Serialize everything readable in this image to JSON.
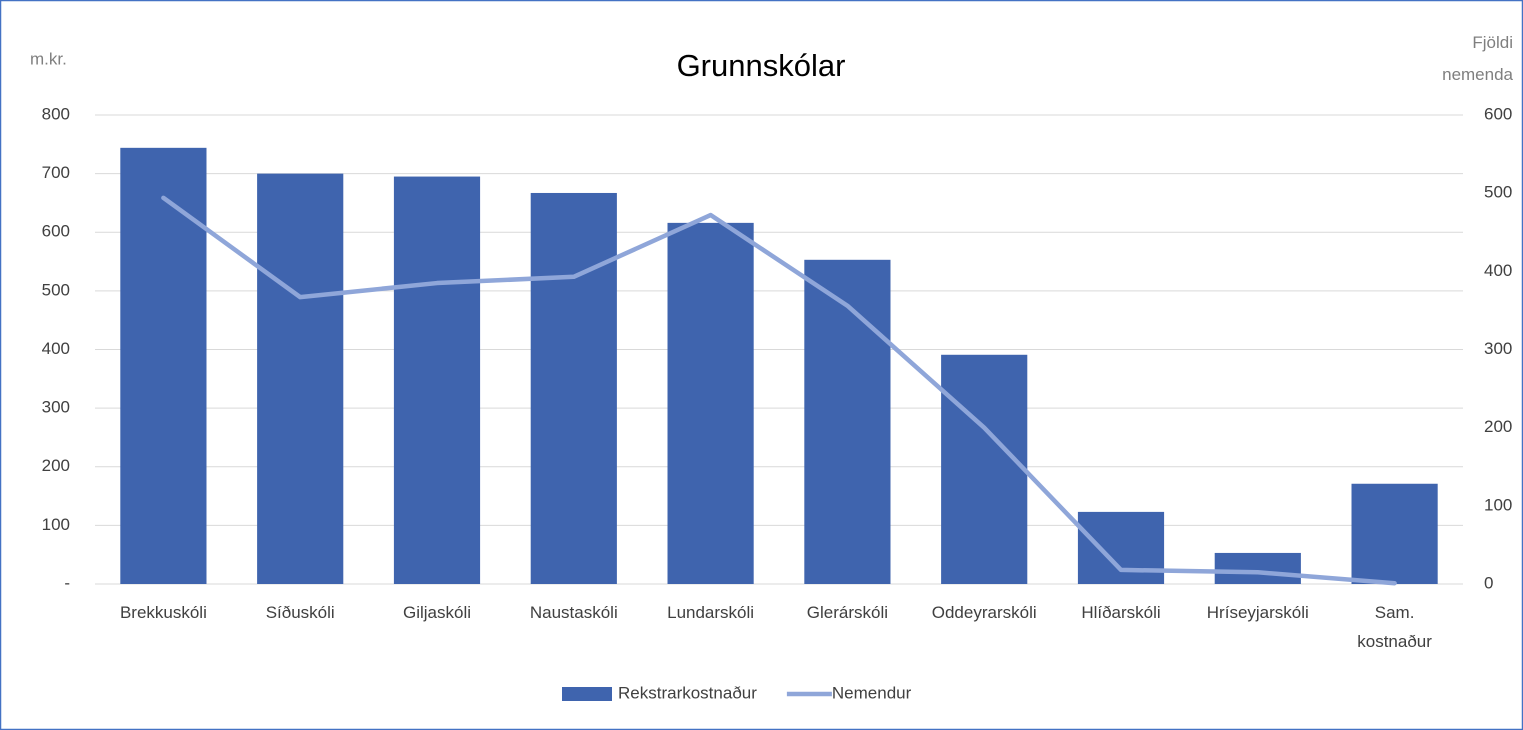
{
  "chart_data": {
    "type": "bar-line",
    "title": "Grunnskólar",
    "ylabel": "m.kr.",
    "y2label": "Fjöldi nemenda",
    "categories": [
      "Brekkuskóli",
      "Síðuskóli",
      "Giljaskóli",
      "Naustaskóli",
      "Lundarskóli",
      "Glerárskóli",
      "Oddeyrarskóli",
      "Hlíðarskóli",
      "Hríseyjarskóli",
      "Sam. kostnaður"
    ],
    "series": [
      {
        "name": "Rekstrarkostnaður",
        "type": "bar",
        "color": "#3f64ae",
        "values": [
          744,
          700,
          695,
          667,
          616,
          553,
          391,
          123,
          53,
          171
        ]
      },
      {
        "name": "Nemendur",
        "type": "line",
        "axis": "y2",
        "color": "#8fa6d9",
        "values": [
          494,
          367,
          385,
          393,
          472,
          356,
          200,
          18,
          15,
          1
        ]
      }
    ],
    "ylim": [
      0,
      800
    ],
    "yticks": [
      {
        "value": 0,
        "label": "-"
      },
      100,
      200,
      300,
      400,
      500,
      600,
      700,
      800
    ],
    "y2lim": [
      0,
      600
    ],
    "y2ticks": [
      0,
      100,
      200,
      300,
      400,
      500,
      600
    ],
    "grid": true,
    "legend": "bottom"
  }
}
